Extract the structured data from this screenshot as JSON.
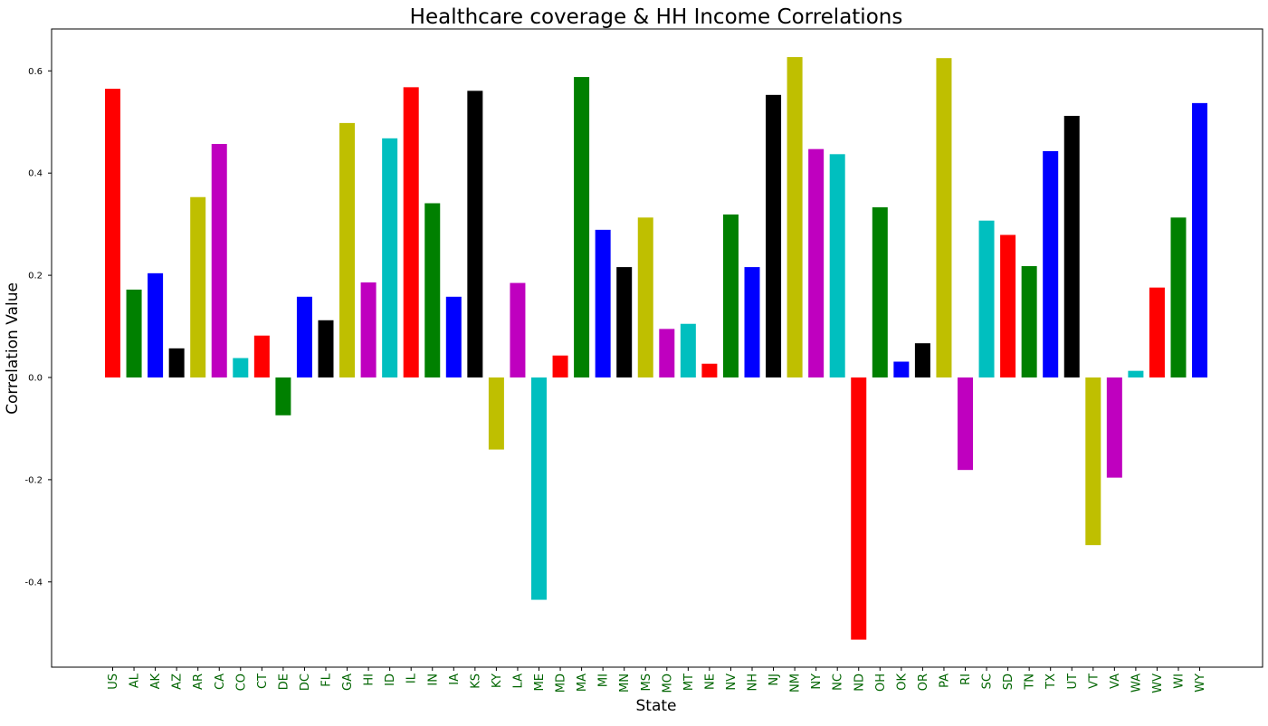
{
  "chart_data": {
    "type": "bar",
    "title": "Healthcare coverage & HH Income Correlations",
    "xlabel": "State",
    "ylabel": "Correlation Value",
    "ylim": [
      -0.56,
      0.68
    ],
    "yticks": [
      -0.4,
      -0.2,
      0.0,
      0.2,
      0.4,
      0.6
    ],
    "ytick_labels": [
      "-0.4",
      "-0.2",
      "0.0",
      "0.2",
      "0.4",
      "0.6"
    ],
    "grid": false,
    "legend": "none",
    "tick_label_color": "#006400",
    "bar_colors": [
      "#ff0000",
      "#008000",
      "#0000ff",
      "#000000",
      "#bfbf00",
      "#bf00bf",
      "#00bfbf"
    ],
    "categories": [
      "US",
      "AL",
      "AK",
      "AZ",
      "AR",
      "CA",
      "CO",
      "CT",
      "DE",
      "DC",
      "FL",
      "GA",
      "HI",
      "ID",
      "IL",
      "IN",
      "IA",
      "KS",
      "KY",
      "LA",
      "ME",
      "MD",
      "MA",
      "MI",
      "MN",
      "MS",
      "MO",
      "MT",
      "NE",
      "NV",
      "NH",
      "NJ",
      "NM",
      "NY",
      "NC",
      "ND",
      "OH",
      "OK",
      "OR",
      "PA",
      "RI",
      "SC",
      "SD",
      "TN",
      "TX",
      "UT",
      "VT",
      "VA",
      "WA",
      "WV",
      "WI",
      "WY"
    ],
    "values": [
      0.565,
      0.172,
      0.204,
      0.057,
      0.353,
      0.457,
      0.038,
      0.082,
      -0.074,
      0.158,
      0.112,
      0.498,
      0.186,
      0.468,
      0.568,
      0.341,
      0.158,
      0.561,
      -0.141,
      0.185,
      -0.435,
      0.043,
      0.588,
      0.289,
      0.216,
      0.313,
      0.095,
      0.105,
      0.027,
      0.319,
      0.216,
      0.553,
      0.627,
      0.447,
      0.437,
      -0.513,
      0.333,
      0.031,
      0.067,
      0.625,
      -0.181,
      0.307,
      0.279,
      0.218,
      0.443,
      0.512,
      -0.328,
      -0.196,
      0.013,
      0.176,
      0.313,
      0.537
    ]
  }
}
